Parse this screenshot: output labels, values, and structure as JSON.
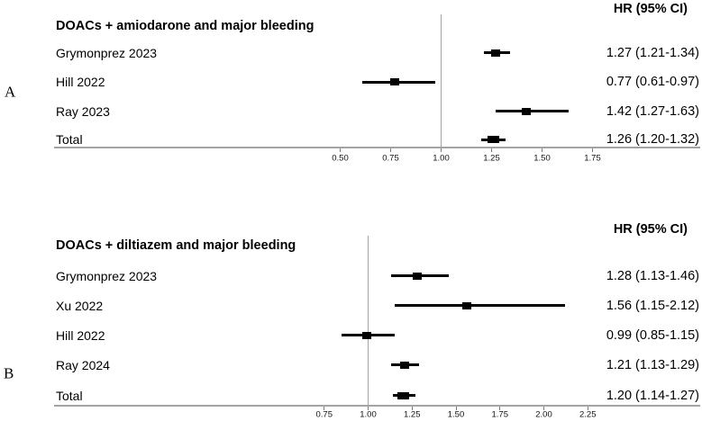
{
  "figure": {
    "colors": {
      "marker": "#000000",
      "axis_line": "#a3a3a3",
      "reference_line": "#a3a3a3",
      "tick": "#7d7d7d",
      "text": "#000000"
    }
  },
  "chart_data": [
    {
      "type": "scatter",
      "subtype": "forest_plot",
      "panel_label": "A",
      "title": "DOACs + amiodarone and major bleeding",
      "column_header": "HR (95% CI)",
      "rows": [
        {
          "label": "Grymonprez 2023",
          "hr": 1.27,
          "ci_low": 1.21,
          "ci_high": 1.34,
          "display": "1.27 (1.21-1.34)",
          "total": false
        },
        {
          "label": "Hill 2022",
          "hr": 0.77,
          "ci_low": 0.61,
          "ci_high": 0.97,
          "display": "0.77 (0.61-0.97)",
          "total": false
        },
        {
          "label": "Ray 2023",
          "hr": 1.42,
          "ci_low": 1.27,
          "ci_high": 1.63,
          "display": "1.42 (1.27-1.63)",
          "total": false
        },
        {
          "label": "Total",
          "hr": 1.26,
          "ci_low": 1.2,
          "ci_high": 1.32,
          "display": "1.26 (1.20-1.32)",
          "total": true
        }
      ],
      "x_axis": {
        "scale": "linear",
        "ticks": [
          0.5,
          0.75,
          1.0,
          1.25,
          1.5,
          1.75
        ],
        "tick_labels": [
          "0.50",
          "0.75",
          "1.00",
          "1.25",
          "1.50",
          "1.75"
        ],
        "reference_line": 1.0
      },
      "legend": null,
      "grid": false
    },
    {
      "type": "scatter",
      "subtype": "forest_plot",
      "panel_label": "B",
      "title": "DOACs + diltiazem and major bleeding",
      "column_header": "HR (95% CI)",
      "rows": [
        {
          "label": "Grymonprez 2023",
          "hr": 1.28,
          "ci_low": 1.13,
          "ci_high": 1.46,
          "display": "1.28 (1.13-1.46)",
          "total": false
        },
        {
          "label": "Xu 2022",
          "hr": 1.56,
          "ci_low": 1.15,
          "ci_high": 2.12,
          "display": "1.56 (1.15-2.12)",
          "total": false
        },
        {
          "label": "Hill 2022",
          "hr": 0.99,
          "ci_low": 0.85,
          "ci_high": 1.15,
          "display": "0.99 (0.85-1.15)",
          "total": false
        },
        {
          "label": "Ray 2024",
          "hr": 1.21,
          "ci_low": 1.13,
          "ci_high": 1.29,
          "display": "1.21 (1.13-1.29)",
          "total": false
        },
        {
          "label": "Total",
          "hr": 1.2,
          "ci_low": 1.14,
          "ci_high": 1.27,
          "display": "1.20 (1.14-1.27)",
          "total": true
        }
      ],
      "x_axis": {
        "scale": "linear",
        "ticks": [
          0.75,
          1.0,
          1.25,
          1.5,
          1.75,
          2.0,
          2.25
        ],
        "tick_labels": [
          "0.75",
          "1.00",
          "1.25",
          "1.50",
          "1.75",
          "2.00",
          "2.25"
        ],
        "reference_line": 1.0
      },
      "legend": null,
      "grid": false
    }
  ]
}
